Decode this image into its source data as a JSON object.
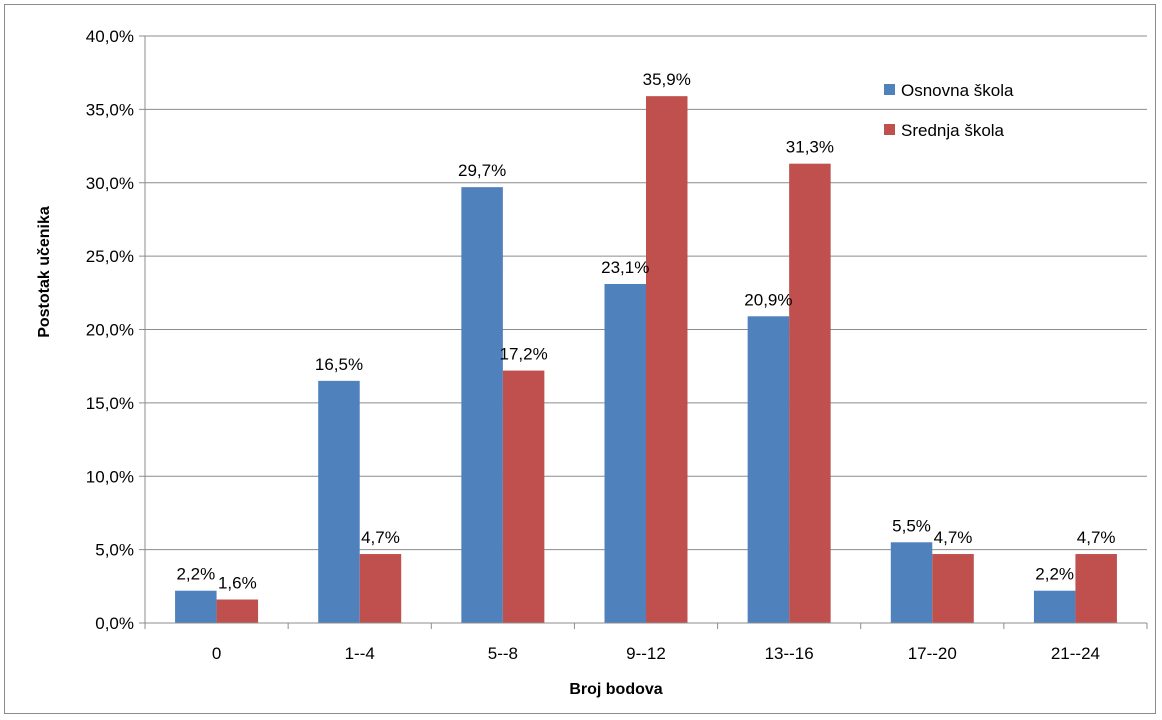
{
  "chart_data": {
    "type": "bar",
    "title": "",
    "xlabel": "Broj bodova",
    "ylabel": "Postotak učenika",
    "ylim": [
      0,
      40
    ],
    "yticks": [
      "0,0%",
      "5,0%",
      "10,0%",
      "15,0%",
      "20,0%",
      "25,0%",
      "30,0%",
      "35,0%",
      "40,0%"
    ],
    "categories": [
      "0",
      "1--4",
      "5--8",
      "9--12",
      "13--16",
      "17--20",
      "21--24"
    ],
    "series": [
      {
        "name": "Osnovna škola",
        "color": "#4F81BD",
        "values": [
          2.2,
          16.5,
          29.7,
          23.1,
          20.9,
          5.5,
          2.2
        ],
        "labels": [
          "2,2%",
          "16,5%",
          "29,7%",
          "23,1%",
          "20,9%",
          "5,5%",
          "2,2%"
        ]
      },
      {
        "name": "Srednja škola",
        "color": "#C0504D",
        "values": [
          1.6,
          4.7,
          17.2,
          35.9,
          31.3,
          4.7,
          4.7
        ],
        "labels": [
          "1,6%",
          "4,7%",
          "17,2%",
          "35,9%",
          "31,3%",
          "4,7%",
          "4,7%"
        ]
      }
    ],
    "grid": true,
    "legend_position": "top-right"
  }
}
